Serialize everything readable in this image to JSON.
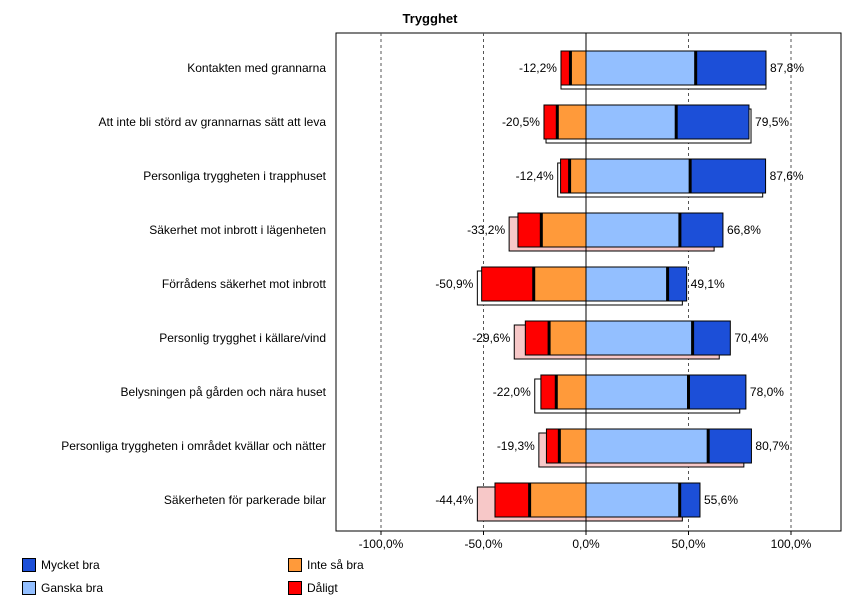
{
  "chart_data": {
    "type": "bar",
    "subtype": "diverging-stacked-horizontal",
    "title": "Trygghet",
    "categories": [
      "Kontakten med grannarna",
      "Att inte bli störd av grannarnas sätt att leva",
      "Personliga tryggheten i trapphuset",
      "Säkerhet mot inbrott i lägenheten",
      "Förrådens säkerhet mot inbrott",
      "Personlig trygghet i källare/vind",
      "Belysningen på gården och nära huset",
      "Personliga tryggheten i området kvällar och nätter",
      "Säkerheten för parkerade bilar"
    ],
    "series": [
      {
        "name": "Mycket bra",
        "color": "#1c4fd8",
        "values": [
          34.3,
          35.5,
          36.8,
          21.0,
          9.3,
          18.4,
          28.0,
          21.1,
          9.9
        ]
      },
      {
        "name": "Ganska bra",
        "color": "#93bfff",
        "values": [
          53.5,
          44.0,
          50.8,
          45.8,
          39.8,
          52.0,
          50.0,
          59.6,
          45.7
        ]
      },
      {
        "name": "Inte så bra",
        "color": "#ff9a3a",
        "values": [
          -7.6,
          -14.0,
          -8.0,
          -21.8,
          -25.5,
          -18.0,
          -14.5,
          -13.0,
          -27.5
        ]
      },
      {
        "name": "Dåligt",
        "color": "#ff0000",
        "values": [
          -4.6,
          -6.5,
          -4.4,
          -11.4,
          -25.4,
          -11.6,
          -7.5,
          -6.3,
          -16.9
        ]
      }
    ],
    "negative_totals_label": [
      "-12,2%",
      "-20,5%",
      "-12,4%",
      "-33,2%",
      "-50,9%",
      "-29,6%",
      "-22,0%",
      "-19,3%",
      "-44,4%"
    ],
    "positive_totals_label": [
      "87,8%",
      "79,5%",
      "87,6%",
      "66,8%",
      "49,1%",
      "70,4%",
      "78,0%",
      "80,7%",
      "55,6%"
    ],
    "comparison": {
      "positive": [
        87.8,
        80.5,
        86.2,
        62.5,
        47.0,
        65.0,
        75.0,
        77.0,
        47.0
      ],
      "negative": [
        -12.2,
        -19.5,
        -13.8,
        -37.5,
        -53.0,
        -35.0,
        -25.0,
        -23.0,
        -53.0
      ],
      "colors": [
        "#ffffff",
        "#ffffff",
        "#ffffff",
        "#f7c8c8",
        "#ffffff",
        "#f7c8c8",
        "#ffffff",
        "#f7c8c8",
        "#f7c8c8"
      ]
    },
    "x_ticks": [
      {
        "value": -100,
        "label": "-100,0%"
      },
      {
        "value": -50,
        "label": "-50,0%"
      },
      {
        "value": 0,
        "label": "0,0%"
      },
      {
        "value": 50,
        "label": "50,0%"
      },
      {
        "value": 100,
        "label": "100,0%"
      }
    ],
    "xlim": [
      -120,
      120
    ],
    "grid": "vertical-dashed",
    "legend": {
      "position": "bottom-left",
      "items": [
        {
          "label": "Mycket bra",
          "color": "#1c4fd8"
        },
        {
          "label": "Ganska bra",
          "color": "#93bfff"
        },
        {
          "label": "Inte så bra",
          "color": "#ff9a3a"
        },
        {
          "label": "Dåligt",
          "color": "#ff0000"
        }
      ]
    }
  }
}
